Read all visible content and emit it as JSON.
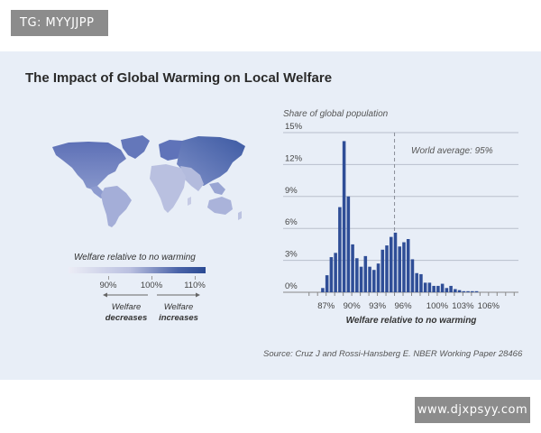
{
  "watermarks": {
    "top_left": "TG: MYYJJPP",
    "bottom_right": "www.djxpsyy.com"
  },
  "title": "The Impact of Global Warming on Local Welfare",
  "source": "Source: Cruz J and Rossi-Hansberg E. NBER Working Paper 28466",
  "legend": {
    "title": "Welfare relative to no warming",
    "ticks": [
      "90%",
      "100%",
      "110%"
    ],
    "decreases": [
      "Welfare",
      "decreases"
    ],
    "increases": [
      "Welfare",
      "increases"
    ],
    "colors": [
      "#ecedf6",
      "#bac0e0",
      "#4a63a8",
      "#2a4a93"
    ]
  },
  "map": {
    "colors": {
      "land_low": "#c3c8e3",
      "land_mid": "#7f90c6",
      "land_high": "#3d5aa3"
    }
  },
  "chart_data": {
    "type": "bar",
    "ylabel": "Share of global population",
    "xlabel": "Welfare relative to no warming",
    "ylim": [
      0,
      15
    ],
    "xlim": [
      84.5,
      109.5
    ],
    "yticks": [
      "0%",
      "3%",
      "6%",
      "9%",
      "12%",
      "15%"
    ],
    "ytick_values": [
      0,
      3,
      6,
      9,
      12,
      15
    ],
    "xticks": [
      "87%",
      "90%",
      "93%",
      "96%",
      "100%",
      "103%",
      "106%"
    ],
    "xtick_values": [
      87,
      90,
      93,
      96,
      100,
      103,
      106
    ],
    "annotation": {
      "label": "World average: 95%",
      "x": 95
    },
    "bar_width": 0.5,
    "x": [
      86.6,
      87.1,
      87.6,
      88.1,
      88.6,
      89.1,
      89.6,
      90.1,
      90.6,
      91.1,
      91.6,
      92.1,
      92.6,
      93.1,
      93.6,
      94.1,
      94.6,
      95.1,
      95.6,
      96.1,
      96.6,
      97.1,
      97.6,
      98.1,
      98.6,
      99.1,
      99.6,
      100.1,
      100.6,
      101.1,
      101.6,
      102.1,
      102.6,
      103.1,
      103.6,
      104.1,
      104.6
    ],
    "values": [
      0.4,
      1.6,
      3.3,
      3.7,
      8.0,
      14.2,
      9.0,
      4.5,
      3.2,
      2.4,
      3.4,
      2.4,
      2.1,
      2.7,
      4.0,
      4.4,
      5.2,
      5.6,
      4.3,
      4.7,
      5.0,
      3.1,
      1.8,
      1.7,
      0.9,
      0.9,
      0.6,
      0.6,
      0.8,
      0.4,
      0.6,
      0.3,
      0.2,
      0.1,
      0.1,
      0.1,
      0.1
    ],
    "bar_color": "#2f4e97",
    "grid": true
  }
}
